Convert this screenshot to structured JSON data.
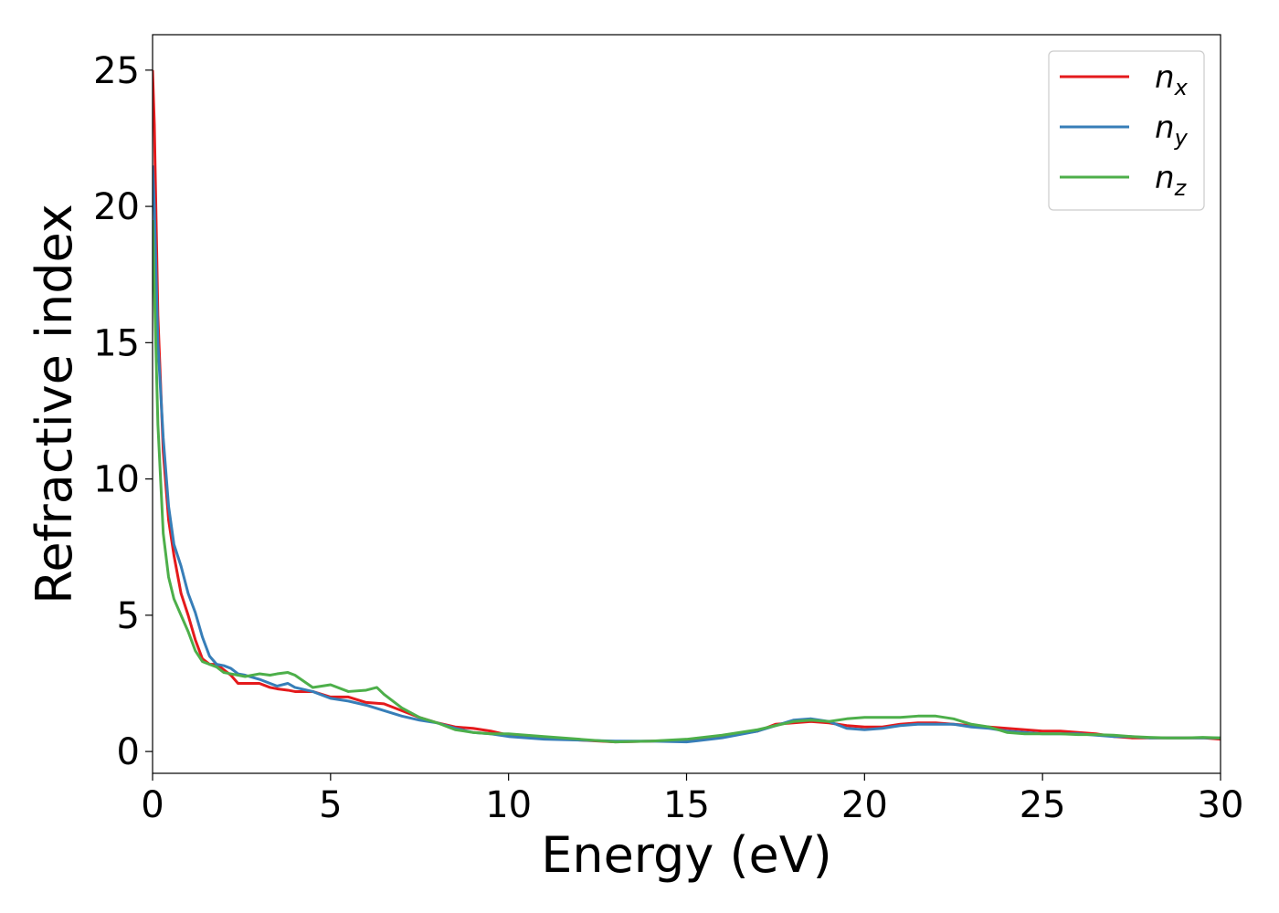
{
  "chart_data": {
    "type": "line",
    "title": "",
    "xlabel": "Energy (eV)",
    "ylabel": "Refractive index",
    "xlim": [
      0,
      30
    ],
    "ylim": [
      -0.8,
      26.3
    ],
    "xticks": [
      0,
      5,
      10,
      15,
      20,
      25,
      30
    ],
    "yticks": [
      0,
      5,
      10,
      15,
      20,
      25
    ],
    "grid": false,
    "legend_position": "top-right",
    "series": [
      {
        "name": "n",
        "subscript": "x",
        "color": "#e41a1c",
        "x": [
          0,
          0.05,
          0.15,
          0.3,
          0.45,
          0.6,
          0.8,
          1.0,
          1.2,
          1.4,
          1.6,
          1.8,
          2.0,
          2.2,
          2.4,
          2.6,
          3.0,
          3.3,
          3.5,
          3.8,
          4.0,
          4.5,
          5.0,
          5.5,
          6.0,
          6.5,
          7.0,
          7.5,
          8.0,
          8.5,
          9.0,
          9.5,
          10,
          11,
          12,
          13,
          14,
          15,
          16,
          17,
          17.5,
          18,
          18.5,
          19,
          19.5,
          20,
          20.5,
          21,
          21.5,
          22,
          22.5,
          23,
          23.5,
          24,
          24.5,
          25,
          25.5,
          26,
          26.5,
          27,
          27.5,
          28,
          28.5,
          29,
          29.5,
          30
        ],
        "y": [
          25.0,
          23.0,
          16.0,
          11.0,
          8.5,
          7.2,
          5.8,
          5.0,
          4.1,
          3.4,
          3.2,
          3.2,
          3.0,
          2.8,
          2.5,
          2.5,
          2.5,
          2.35,
          2.3,
          2.25,
          2.2,
          2.2,
          2.0,
          2.0,
          1.8,
          1.75,
          1.5,
          1.25,
          1.05,
          0.9,
          0.85,
          0.75,
          0.6,
          0.5,
          0.42,
          0.35,
          0.38,
          0.42,
          0.55,
          0.75,
          1.0,
          1.05,
          1.1,
          1.05,
          0.95,
          0.9,
          0.9,
          1.0,
          1.05,
          1.05,
          1.0,
          0.95,
          0.9,
          0.85,
          0.8,
          0.75,
          0.75,
          0.7,
          0.65,
          0.55,
          0.5,
          0.5,
          0.5,
          0.5,
          0.5,
          0.45
        ]
      },
      {
        "name": "n",
        "subscript": "y",
        "color": "#377eb8",
        "x": [
          0,
          0.05,
          0.15,
          0.3,
          0.45,
          0.6,
          0.8,
          1.0,
          1.2,
          1.4,
          1.6,
          1.8,
          2.0,
          2.2,
          2.4,
          2.6,
          3.0,
          3.3,
          3.5,
          3.8,
          4.0,
          4.5,
          5.0,
          5.5,
          6.0,
          6.5,
          7.0,
          7.5,
          8.0,
          8.5,
          9.0,
          9.5,
          10,
          11,
          12,
          13,
          14,
          15,
          16,
          17,
          17.5,
          18,
          18.5,
          19,
          19.5,
          20,
          20.5,
          21,
          21.5,
          22,
          22.5,
          23,
          23.5,
          24,
          24.5,
          25,
          25.5,
          26,
          26.5,
          27,
          27.5,
          28,
          28.5,
          29,
          29.5,
          30
        ],
        "y": [
          21.5,
          20.0,
          15.0,
          11.5,
          9.0,
          7.6,
          6.8,
          5.8,
          5.1,
          4.2,
          3.5,
          3.2,
          3.15,
          3.05,
          2.85,
          2.8,
          2.65,
          2.5,
          2.4,
          2.5,
          2.35,
          2.2,
          1.95,
          1.85,
          1.7,
          1.5,
          1.3,
          1.15,
          1.05,
          0.85,
          0.7,
          0.65,
          0.55,
          0.45,
          0.42,
          0.38,
          0.38,
          0.35,
          0.5,
          0.75,
          0.95,
          1.15,
          1.2,
          1.1,
          0.85,
          0.8,
          0.85,
          0.95,
          1.0,
          1.0,
          1.0,
          0.9,
          0.85,
          0.75,
          0.7,
          0.65,
          0.65,
          0.65,
          0.6,
          0.55,
          0.55,
          0.5,
          0.5,
          0.5,
          0.5,
          0.5
        ]
      },
      {
        "name": "n",
        "subscript": "z",
        "color": "#4daf4a",
        "x": [
          0,
          0.05,
          0.15,
          0.3,
          0.45,
          0.6,
          0.8,
          1.0,
          1.2,
          1.4,
          1.6,
          1.8,
          2.0,
          2.2,
          2.4,
          2.6,
          3.0,
          3.3,
          3.5,
          3.8,
          4.0,
          4.5,
          5.0,
          5.5,
          6.0,
          6.3,
          6.5,
          7.0,
          7.5,
          8.0,
          8.5,
          9.0,
          9.5,
          10,
          11,
          12,
          13,
          14,
          15,
          16,
          17,
          17.5,
          18,
          18.5,
          19,
          19.5,
          20,
          20.5,
          21,
          21.5,
          22,
          22.5,
          23,
          23.5,
          24,
          24.5,
          25,
          25.5,
          26,
          26.5,
          27,
          27.5,
          28,
          28.5,
          29,
          29.5,
          30
        ],
        "y": [
          19.5,
          17.0,
          12.0,
          8.0,
          6.4,
          5.6,
          5.0,
          4.4,
          3.7,
          3.3,
          3.2,
          3.1,
          2.9,
          2.85,
          2.8,
          2.75,
          2.85,
          2.8,
          2.85,
          2.9,
          2.8,
          2.35,
          2.45,
          2.2,
          2.25,
          2.35,
          2.1,
          1.6,
          1.25,
          1.05,
          0.8,
          0.7,
          0.65,
          0.65,
          0.55,
          0.45,
          0.35,
          0.38,
          0.45,
          0.6,
          0.8,
          0.95,
          1.1,
          1.15,
          1.1,
          1.2,
          1.25,
          1.25,
          1.25,
          1.3,
          1.3,
          1.2,
          1.0,
          0.9,
          0.7,
          0.65,
          0.65,
          0.65,
          0.62,
          0.62,
          0.6,
          0.55,
          0.52,
          0.5,
          0.5,
          0.52,
          0.5
        ]
      }
    ]
  }
}
